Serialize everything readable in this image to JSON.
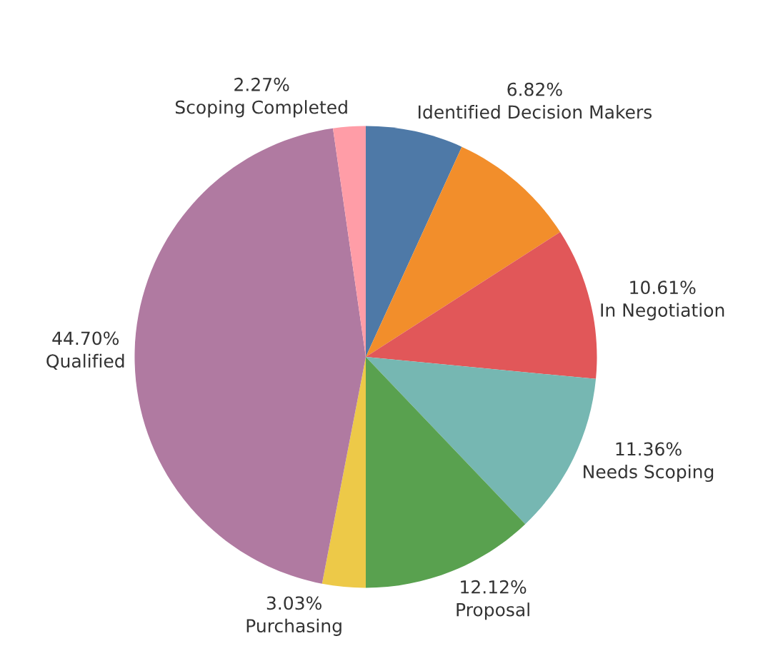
{
  "chart_data": {
    "type": "pie",
    "categories": [
      "Identified Decision Makers",
      null,
      "In Negotiation",
      "Needs Scoping",
      "Proposal",
      "Purchasing",
      "Qualified",
      "Scoping Completed"
    ],
    "values": [
      6.82,
      9.09,
      10.61,
      11.36,
      12.12,
      3.03,
      44.7,
      2.27
    ],
    "value_labels": [
      "6.82%",
      null,
      "10.61%",
      "11.36%",
      "12.12%",
      "3.03%",
      "44.70%",
      "2.27%"
    ],
    "colors": [
      "#4e79a7",
      "#f28e2b",
      "#e15759",
      "#76b7b2",
      "#59a14f",
      "#edc948",
      "#b07aa1",
      "#ff9da7"
    ],
    "legend": false
  }
}
